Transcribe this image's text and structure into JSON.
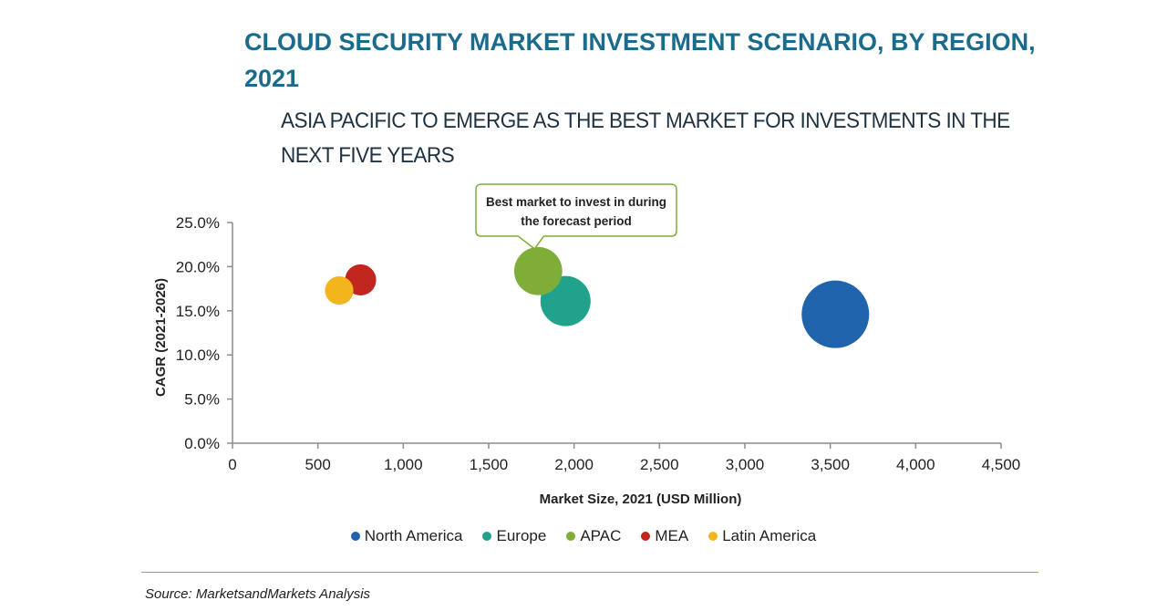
{
  "header": {
    "title": "CLOUD SECURITY MARKET INVESTMENT SCENARIO, BY REGION, 2021",
    "subtitle": "ASIA PACIFIC TO EMERGE AS THE BEST MARKET FOR INVESTMENTS IN THE NEXT FIVE YEARS"
  },
  "chart_data": {
    "type": "scatter",
    "title": "CLOUD SECURITY MARKET INVESTMENT SCENARIO, BY REGION, 2021",
    "subtitle": "ASIA PACIFIC TO EMERGE AS THE BEST MARKET FOR INVESTMENTS IN THE NEXT FIVE YEARS",
    "xlabel": "Market Size, 2021 (USD Million)",
    "ylabel": "CAGR (2021-2026)",
    "xlim": [
      0,
      4500
    ],
    "ylim": [
      0,
      25
    ],
    "x_ticks": [
      "0",
      "500",
      "1,000",
      "1,500",
      "2,000",
      "2,500",
      "3,000",
      "3,500",
      "4,000",
      "4,500"
    ],
    "y_ticks": [
      "0.0%",
      "5.0%",
      "10.0%",
      "15.0%",
      "20.0%",
      "25.0%"
    ],
    "grid": false,
    "legend_position": "bottom",
    "series": [
      {
        "name": "North America",
        "x": 3530,
        "y": 14.6,
        "size": 3530,
        "color": "#1f64ad"
      },
      {
        "name": "Europe",
        "x": 1950,
        "y": 16.1,
        "size": 1950,
        "color": "#21a28c"
      },
      {
        "name": "APAC",
        "x": 1790,
        "y": 19.5,
        "size": 1790,
        "color": "#7fae38"
      },
      {
        "name": "MEA",
        "x": 750,
        "y": 18.5,
        "size": 750,
        "color": "#c1261f"
      },
      {
        "name": "Latin America",
        "x": 625,
        "y": 17.3,
        "size": 625,
        "color": "#f2b51c"
      }
    ],
    "annotation": {
      "text_lines": [
        "Best market to invest in during",
        "the forecast period"
      ],
      "target": "APAC",
      "border_color": "#7fae38"
    }
  },
  "footer": {
    "source": "Source: MarketsandMarkets Analysis"
  }
}
